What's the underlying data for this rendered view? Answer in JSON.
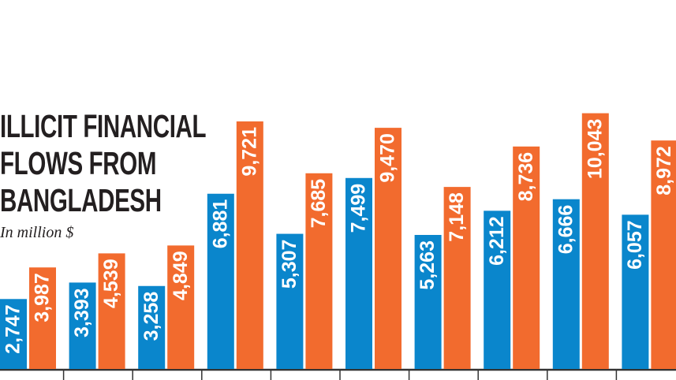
{
  "chart_data": {
    "type": "bar",
    "title": "ILLICIT FINANCIAL FLOWS FROM BANGLADESH",
    "subtitle": "In million $",
    "series": [
      {
        "color": "#0a86cc",
        "values": [
          2747,
          3393,
          3258,
          6881,
          5307,
          7499,
          5263,
          6212,
          6666,
          6057
        ],
        "value_labels": [
          "2,747",
          "3,393",
          "3,258",
          "6,881",
          "5,307",
          "7,499",
          "5,263",
          "6,212",
          "6,666",
          "6,057"
        ]
      },
      {
        "color": "#f26b2e",
        "values": [
          3987,
          4539,
          4849,
          9721,
          7685,
          9470,
          7148,
          8736,
          10043,
          8972
        ],
        "value_labels": [
          "3,987",
          "4,539",
          "4,849",
          "9,721",
          "7,685",
          "9,470",
          "7,148",
          "8,736",
          "10,043",
          "8,972"
        ]
      }
    ]
  }
}
